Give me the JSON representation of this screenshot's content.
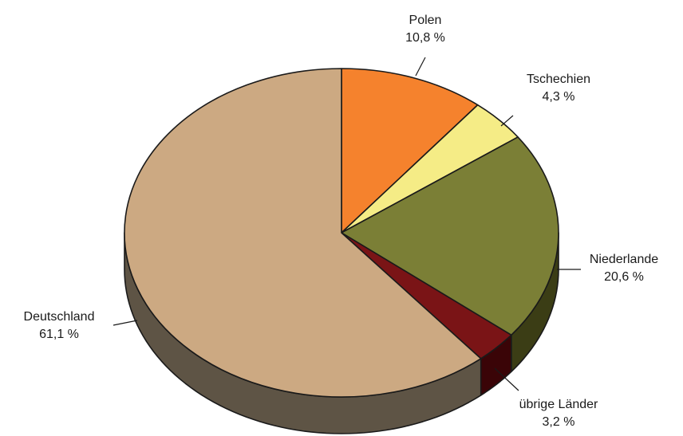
{
  "chart_data": {
    "type": "pie",
    "style": "3d",
    "title": "",
    "slices": [
      {
        "label": "Polen",
        "value": 10.8,
        "value_label": "10,8 %",
        "color": "#F5822D",
        "side_color": "#8E4A18"
      },
      {
        "label": "Tschechien",
        "value": 4.3,
        "value_label": "4,3 %",
        "color": "#F5EC86",
        "side_color": "#8C874C"
      },
      {
        "label": "Niederlande",
        "value": 20.6,
        "value_label": "20,6 %",
        "color": "#7B7F36",
        "side_color": "#3B3D15"
      },
      {
        "label": "übrige Länder",
        "value": 3.2,
        "value_label": "3,2 %",
        "color": "#7A1416",
        "side_color": "#3A0407"
      },
      {
        "label": "Deutschland",
        "value": 61.1,
        "value_label": "61,1 %",
        "color": "#CCA982",
        "side_color": "#5E5445"
      }
    ]
  }
}
